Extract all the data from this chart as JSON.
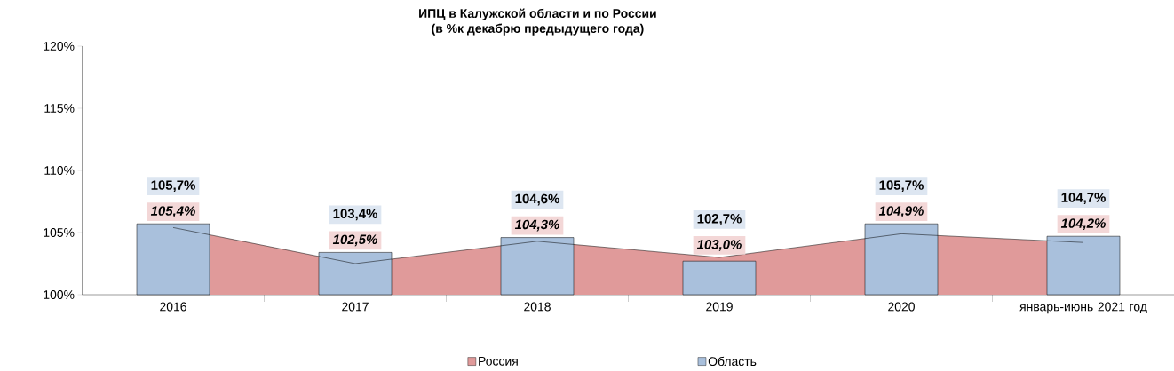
{
  "chart_data": {
    "type": "bar",
    "title": "ИПЦ в Калужской области и по России",
    "subtitle": "(в %к декабрю предыдущего года)",
    "categories": [
      "2016",
      "2017",
      "2018",
      "2019",
      "2020",
      "январь-июнь 2021 год"
    ],
    "series": [
      {
        "name": "Россия",
        "type": "area",
        "color": "#e09a9a",
        "values": [
          105.4,
          102.5,
          104.3,
          103.0,
          104.9,
          104.2
        ],
        "value_labels": [
          "105,4%",
          "102,5%",
          "104,3%",
          "103,0%",
          "104,9%",
          "104,2%"
        ]
      },
      {
        "name": "Область",
        "color": "#a9c0dc",
        "values": [
          105.7,
          103.4,
          104.6,
          102.7,
          105.7,
          104.7
        ],
        "value_labels": [
          "105,7%",
          "103,4%",
          "104,6%",
          "102,7%",
          "105,7%",
          "104,7%"
        ]
      }
    ],
    "ylim": [
      100,
      120
    ],
    "yticks": [
      {
        "value": 100,
        "label": "100%"
      },
      {
        "value": 105,
        "label": "105%"
      },
      {
        "value": 110,
        "label": "110%"
      },
      {
        "value": 115,
        "label": "115%"
      },
      {
        "value": 120,
        "label": "120%"
      }
    ],
    "legend": "bottom"
  }
}
